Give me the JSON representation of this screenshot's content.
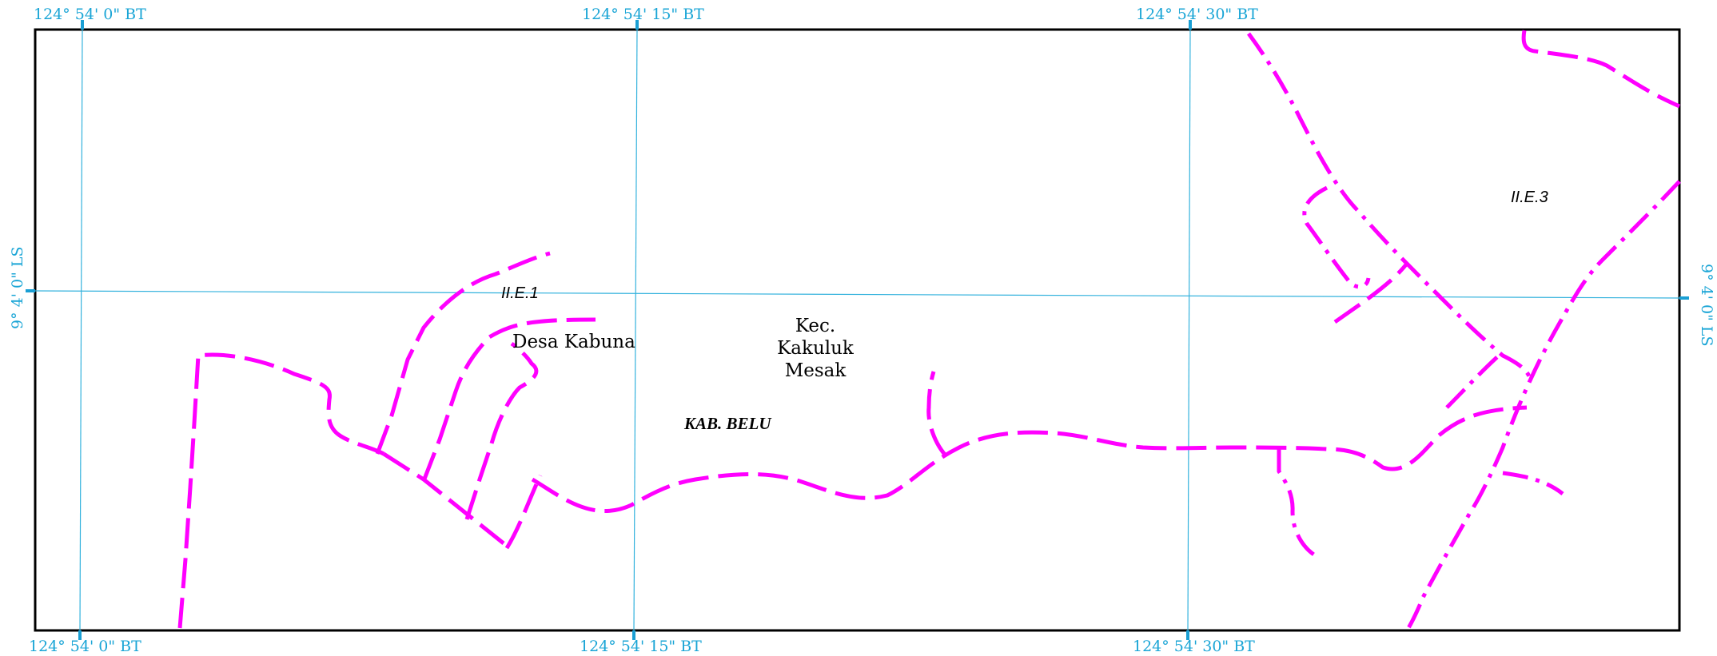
{
  "map": {
    "longitude_labels": [
      "124° 54' 0\" BT",
      "124° 54' 15\" BT",
      "124° 54' 30\" BT"
    ],
    "latitude_label": "9° 4' 0\" LS",
    "labels": {
      "sheet_1": "II.E.1",
      "sheet_3": "II.E.3",
      "village": "Desa Kabuna",
      "district_line1": "Kec.",
      "district_line2": "Kakuluk",
      "district_line3": "Mesak",
      "regency": "KAB. BELU"
    },
    "colors": {
      "road": "#ff00ff",
      "grid": "#33b2dd",
      "frame": "#000000"
    }
  }
}
